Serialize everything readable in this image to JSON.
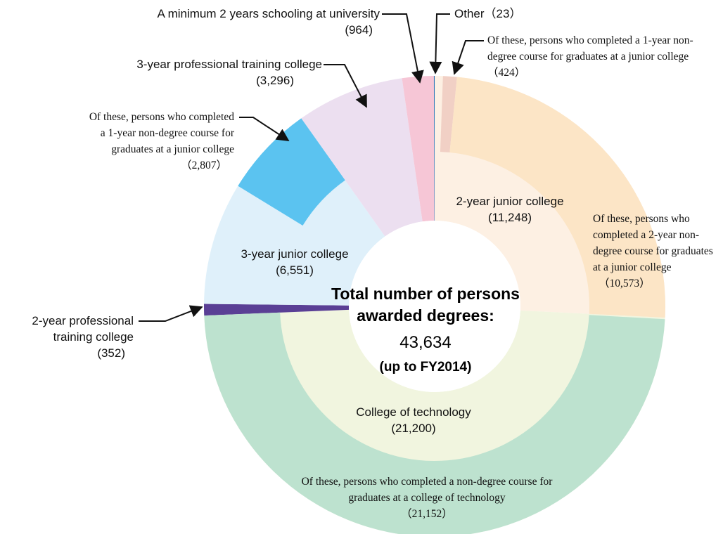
{
  "chart_data": {
    "type": "nested-donut",
    "center": {
      "title": "Total number of persons awarded degrees:",
      "value": 43634,
      "value_label": "43,634",
      "note": "(up to FY2014)"
    },
    "segments": [
      {
        "name": "2-year junior college",
        "value": 11248,
        "value_label": "(11,248)",
        "color": "#fdf0e3",
        "subsets": [
          {
            "name": "Of these, persons who completed a 1-year non-degree course for graduates at a junior college",
            "value": 424,
            "value_label": "（424）",
            "color": "#f1d0c5"
          },
          {
            "name": "Of these, persons who completed a 2-year non-degree course for graduates at a junior college",
            "value": 10573,
            "value_label": "（10,573）",
            "color": "#fce5c6"
          }
        ]
      },
      {
        "name": "College of technology",
        "value": 21200,
        "value_label": "(21,200)",
        "color": "#f1f5df",
        "subsets": [
          {
            "name": "Of these, persons who completed a non-degree course for graduates at a college of technology",
            "value": 21152,
            "value_label": "（21,152）",
            "color": "#bde2cf"
          }
        ]
      },
      {
        "name": "2-year professional training college",
        "value": 352,
        "value_label": "(352)",
        "color": "#5a3f95",
        "subsets": []
      },
      {
        "name": "3-year junior college",
        "value": 6551,
        "value_label": "(6,551)",
        "color": "#dff0fa",
        "subsets": [
          {
            "name": "Of these, persons who completed a 1-year non-degree course for graduates at a junior college",
            "value": 2807,
            "value_label": "（2,807）",
            "color": "#5bc3f0"
          }
        ]
      },
      {
        "name": "3-year professional training college",
        "value": 3296,
        "value_label": "(3,296)",
        "color": "#ecdff0",
        "subsets": []
      },
      {
        "name": "A minimum 2 years schooling at university",
        "value": 964,
        "value_label": "(964)",
        "color": "#f6c6d6",
        "subsets": []
      },
      {
        "name": "Other",
        "value": 23,
        "value_label": "（23）",
        "color": "#1f6fb5",
        "subsets": []
      }
    ]
  }
}
